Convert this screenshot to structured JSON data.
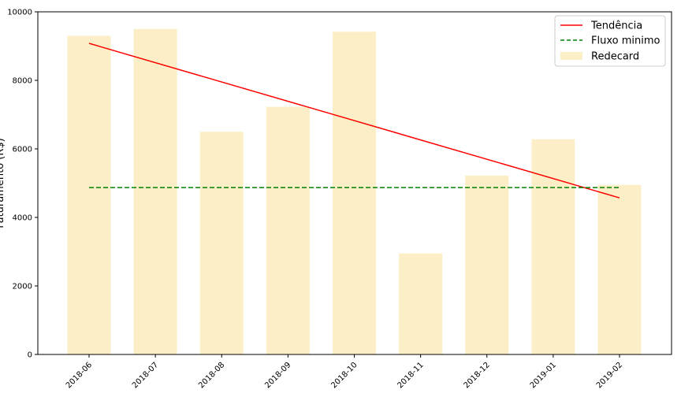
{
  "chart_data": {
    "type": "bar",
    "categories": [
      "2018-06",
      "2018-07",
      "2018-08",
      "2018-09",
      "2018-10",
      "2018-11",
      "2018-12",
      "2019-01",
      "2019-02"
    ],
    "series": [
      {
        "name": "Redecard",
        "type": "bar",
        "values": [
          9300,
          9500,
          6500,
          7230,
          9420,
          2950,
          5220,
          6280,
          4950
        ],
        "color": "#fcefc7"
      }
    ],
    "lines": [
      {
        "name": "Tendência",
        "style": "solid",
        "color": "#ff0000",
        "start": 9080,
        "end": 4570
      },
      {
        "name": "Fluxo minimo",
        "style": "dashed",
        "color": "#008000",
        "value": 4870
      }
    ],
    "ylabel": "Faturamento (R$)",
    "xlabel": "",
    "ylim": [
      0,
      10000
    ],
    "yticks": [
      0,
      2000,
      4000,
      6000,
      8000,
      10000
    ],
    "legend": {
      "placement": "top-right",
      "entries": [
        "Tendência",
        "Fluxo minimo",
        "Redecard"
      ]
    }
  }
}
